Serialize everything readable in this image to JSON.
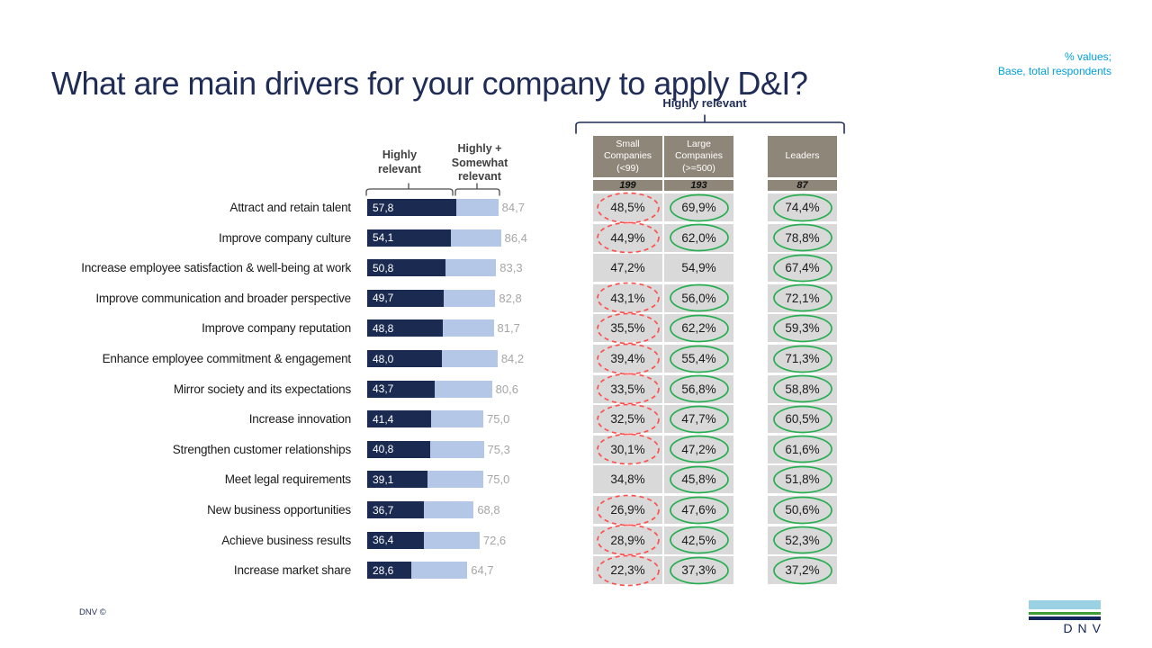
{
  "header": {
    "title": "What are main drivers for your company to apply D&I?",
    "annotation_line1": "% values;",
    "annotation_line2": "Base, total respondents"
  },
  "chart_data": {
    "type": "bar",
    "orientation": "horizontal",
    "title": "What are main drivers for your company to apply D&I?",
    "xlim": [
      0,
      100
    ],
    "grid": false,
    "legend_position": "top",
    "value_format": "comma-decimal",
    "categories": [
      "Attract and retain talent",
      "Improve company culture",
      "Increase employee satisfaction & well-being at work",
      "Improve communication and broader perspective",
      "Improve company reputation",
      "Enhance employee commitment & engagement",
      "Mirror society and its expectations",
      "Increase innovation",
      "Strengthen customer relationships",
      "Meet legal requirements",
      "New business opportunities",
      "Achieve business results",
      "Increase market share"
    ],
    "series": [
      {
        "name": "Highly relevant",
        "values": [
          57.8,
          54.1,
          50.8,
          49.7,
          48.8,
          48.0,
          43.7,
          41.4,
          40.8,
          39.1,
          36.7,
          36.4,
          28.6
        ],
        "labels": [
          "57,8",
          "54,1",
          "50,8",
          "49,7",
          "48,8",
          "48,0",
          "43,7",
          "41,4",
          "40,8",
          "39,1",
          "36,7",
          "36,4",
          "28,6"
        ]
      },
      {
        "name": "Highly + Somewhat relevant",
        "values": [
          84.7,
          86.4,
          83.3,
          82.8,
          81.7,
          84.2,
          80.6,
          75.0,
          75.3,
          75.0,
          68.8,
          72.6,
          64.7
        ],
        "labels": [
          "84,7",
          "86,4",
          "83,3",
          "82,8",
          "81,7",
          "84,2",
          "80,6",
          "75,0",
          "75,3",
          "75,0",
          "68,8",
          "72,6",
          "64,7"
        ]
      }
    ]
  },
  "chart": {
    "legend_highly": "Highly\nrelevant",
    "legend_combined": "Highly +\nSomewhat\nrelevant"
  },
  "table": {
    "group_label": "Highly relevant",
    "columns": [
      {
        "id": "small",
        "label": "Small\nCompanies\n(<99)",
        "base": "199"
      },
      {
        "id": "large",
        "label": "Large\nCompanies\n(>=500)",
        "base": "193"
      },
      {
        "id": "leaders",
        "label": "Leaders",
        "base": "87"
      }
    ],
    "rows": [
      {
        "small": "48,5%",
        "small_circle": "red",
        "large": "69,9%",
        "large_circle": "green",
        "leaders": "74,4%",
        "leaders_circle": "green"
      },
      {
        "small": "44,9%",
        "small_circle": "red",
        "large": "62,0%",
        "large_circle": "green",
        "leaders": "78,8%",
        "leaders_circle": "green"
      },
      {
        "small": "47,2%",
        "small_circle": "none",
        "large": "54,9%",
        "large_circle": "none",
        "leaders": "67,4%",
        "leaders_circle": "green"
      },
      {
        "small": "43,1%",
        "small_circle": "red",
        "large": "56,0%",
        "large_circle": "green",
        "leaders": "72,1%",
        "leaders_circle": "green"
      },
      {
        "small": "35,5%",
        "small_circle": "red",
        "large": "62,2%",
        "large_circle": "green",
        "leaders": "59,3%",
        "leaders_circle": "green"
      },
      {
        "small": "39,4%",
        "small_circle": "red",
        "large": "55,4%",
        "large_circle": "green",
        "leaders": "71,3%",
        "leaders_circle": "green"
      },
      {
        "small": "33,5%",
        "small_circle": "red",
        "large": "56,8%",
        "large_circle": "green",
        "leaders": "58,8%",
        "leaders_circle": "green"
      },
      {
        "small": "32,5%",
        "small_circle": "red",
        "large": "47,7%",
        "large_circle": "green",
        "leaders": "60,5%",
        "leaders_circle": "green"
      },
      {
        "small": "30,1%",
        "small_circle": "red",
        "large": "47,2%",
        "large_circle": "green",
        "leaders": "61,6%",
        "leaders_circle": "green"
      },
      {
        "small": "34,8%",
        "small_circle": "none",
        "large": "45,8%",
        "large_circle": "green",
        "leaders": "51,8%",
        "leaders_circle": "green"
      },
      {
        "small": "26,9%",
        "small_circle": "red",
        "large": "47,6%",
        "large_circle": "green",
        "leaders": "50,6%",
        "leaders_circle": "green"
      },
      {
        "small": "28,9%",
        "small_circle": "red",
        "large": "42,5%",
        "large_circle": "green",
        "leaders": "52,3%",
        "leaders_circle": "green"
      },
      {
        "small": "22,3%",
        "small_circle": "red",
        "large": "37,3%",
        "large_circle": "green",
        "leaders": "37,2%",
        "leaders_circle": "green"
      }
    ]
  },
  "footer": {
    "copyright": "DNV ©",
    "logo_text": "DNV"
  },
  "colors": {
    "navy": "#1F2C56",
    "bar_dark": "#1B2A50",
    "bar_light": "#B4C7E7",
    "gray_value": "#A6A6A6",
    "cyan": "#009FDA",
    "taupe": "#8E8679",
    "cell_gray": "#D9D9D9",
    "circle_green": "#27AE51",
    "circle_red": "#FF5050",
    "logo_sky": "#9AD2E4",
    "logo_green": "#3F9C35",
    "logo_navy": "#13265C"
  }
}
